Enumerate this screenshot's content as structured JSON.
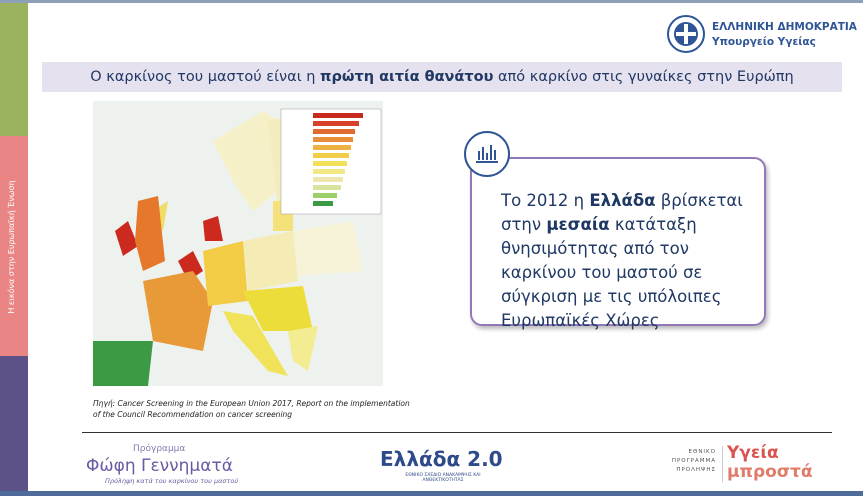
{
  "header": {
    "country": "ΕΛΛΗΝΙΚΗ ΔΗΜΟΚΡΑΤΙΑ",
    "ministry": "Υπουργείο Υγείας"
  },
  "sidebar": {
    "label": "Η εικόνα στην Ευρωπαϊκή Ένωση"
  },
  "title": {
    "parts": [
      "Ο καρκίνος του μαστού είναι η ",
      "πρώτη αιτία θανάτου",
      " από καρκίνο στις γυναίκες στην Ευρώπη"
    ]
  },
  "callout": {
    "parts": [
      "Το 2012 η ",
      "Ελλάδα",
      " βρίσκεται στην ",
      "μεσαία",
      " κατάταξη θνησιμότητας από τον καρκίνου του μαστού σε σύγκριση με τις υπόλοιπες Ευρωπαϊκές Χώρες"
    ]
  },
  "source": {
    "text": "Πηγή: Cancer Screening in the European Union 2017, Report on the implementation of the Council Recommendation on cancer screening"
  },
  "footer": {
    "program": {
      "label": "Πρόγραμμα",
      "name": "Φώφη Γεννηματά",
      "tagline": "Πρόληψη κατά του καρκίνου του μαστού"
    },
    "greece20": {
      "name": "Ελλάδα 2.0",
      "subtitle": "ΕΘΝΙΚΟ ΣΧΕΔΙΟ ΑΝΑΚΑΜΨΗΣ ΚΑΙ ΑΝΘΕΚΤΙΚΟΤΗΤΑΣ"
    },
    "health": {
      "label": "ΕΘΝΙΚΟ ΠΡΟΓΡΑΜΜΑ ΠΡΟΛΗΨΗΣ",
      "line1": "Υγεία",
      "line2": "μπροστά"
    }
  }
}
